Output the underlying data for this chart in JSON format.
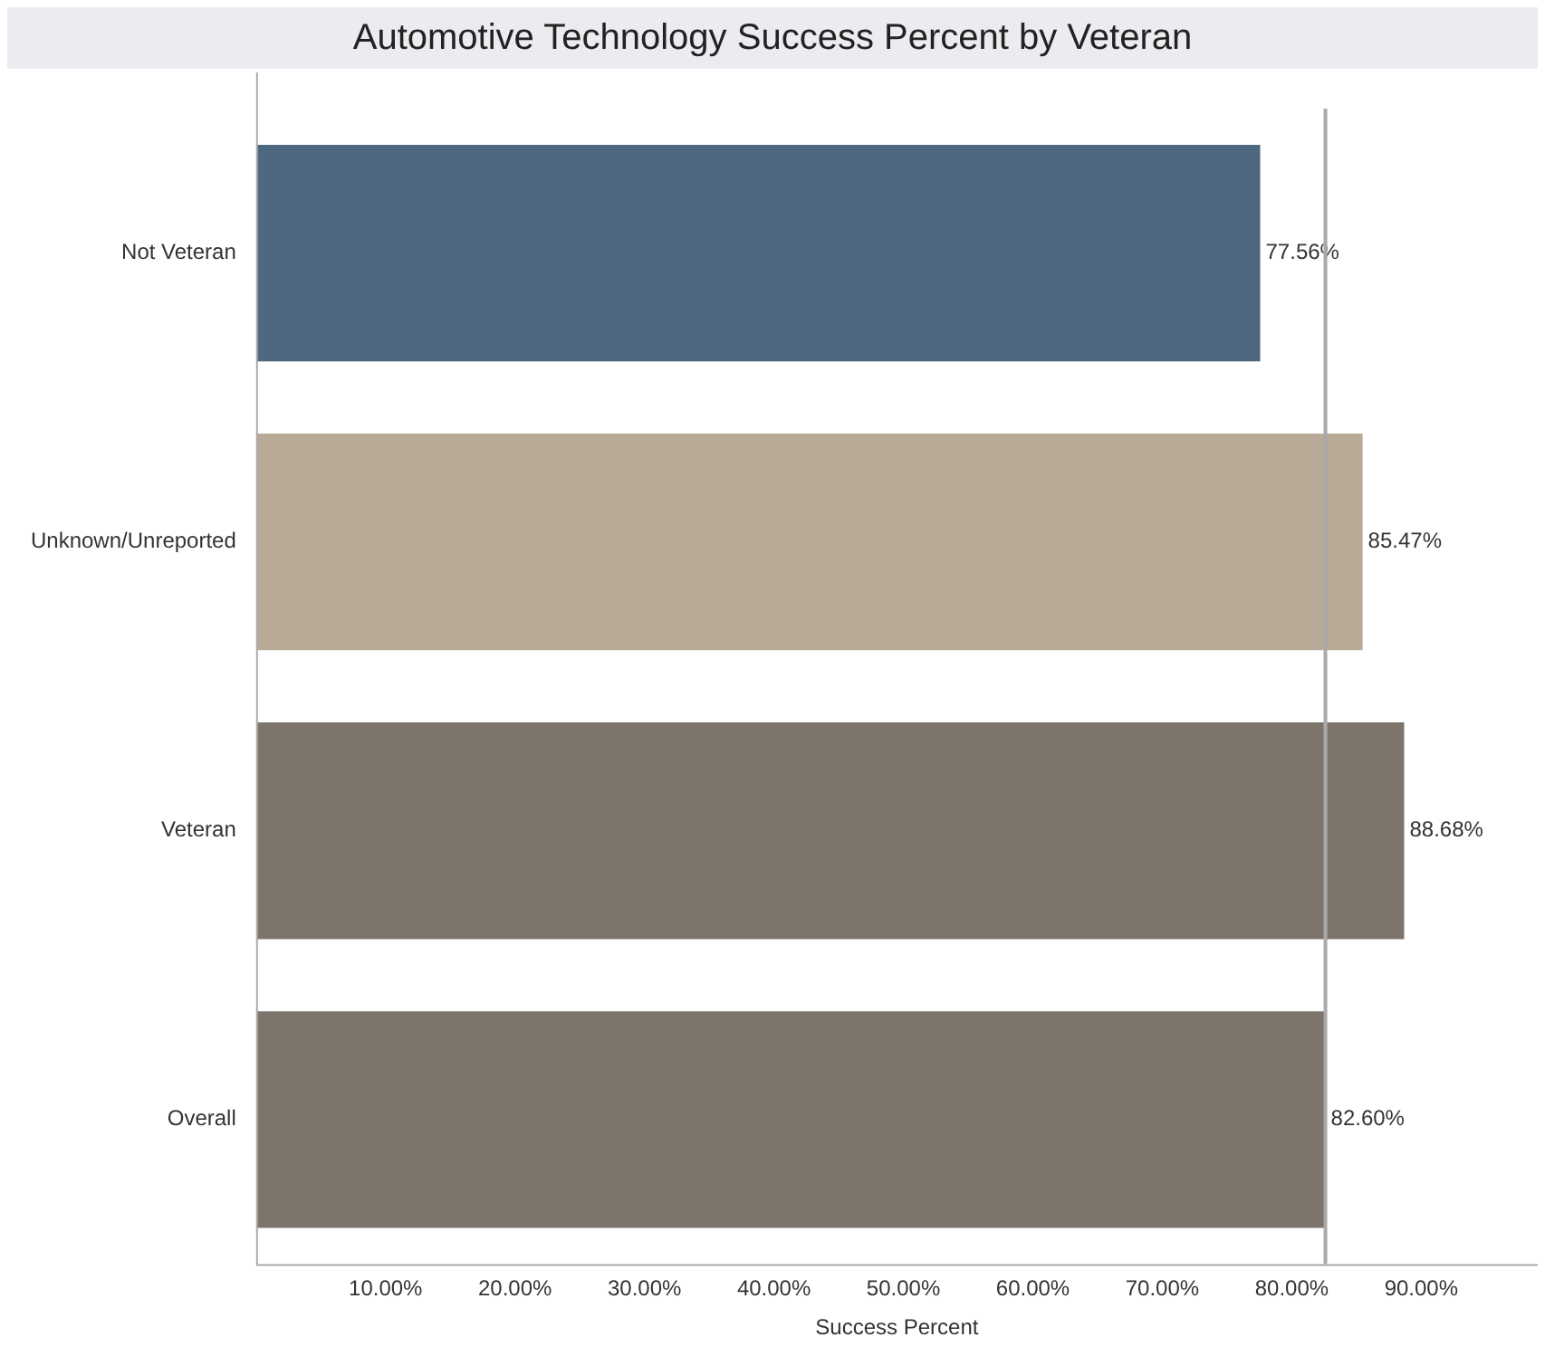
{
  "chart_data": {
    "type": "bar",
    "orientation": "horizontal",
    "title": "Automotive Technology Success Percent by Veteran",
    "xlabel": "Success Percent",
    "categories": [
      "Not Veteran",
      "Unknown/Unreported",
      "Veteran",
      "Overall"
    ],
    "values": [
      77.56,
      85.47,
      88.68,
      82.6
    ],
    "colors": [
      "#4e6880",
      "#b8aa96",
      "#7d756b",
      "#7d756b"
    ],
    "value_labels": [
      "77.56%",
      "85.47%",
      "88.68%",
      "82.60%"
    ],
    "xlim": [
      0,
      99
    ],
    "xticks": [
      {
        "value": 10,
        "label": "10.00%"
      },
      {
        "value": 20,
        "label": "20.00%"
      },
      {
        "value": 30,
        "label": "30.00%"
      },
      {
        "value": 40,
        "label": "40.00%"
      },
      {
        "value": 50,
        "label": "50.00%"
      },
      {
        "value": 60,
        "label": "60.00%"
      },
      {
        "value": 70,
        "label": "70.00%"
      },
      {
        "value": 80,
        "label": "80.00%"
      },
      {
        "value": 90,
        "label": "90.00%"
      }
    ],
    "ref_lines": [
      {
        "axis": "x",
        "value": 82.6,
        "color": "#a9a9a9"
      }
    ],
    "grid": false,
    "legend": false
  }
}
